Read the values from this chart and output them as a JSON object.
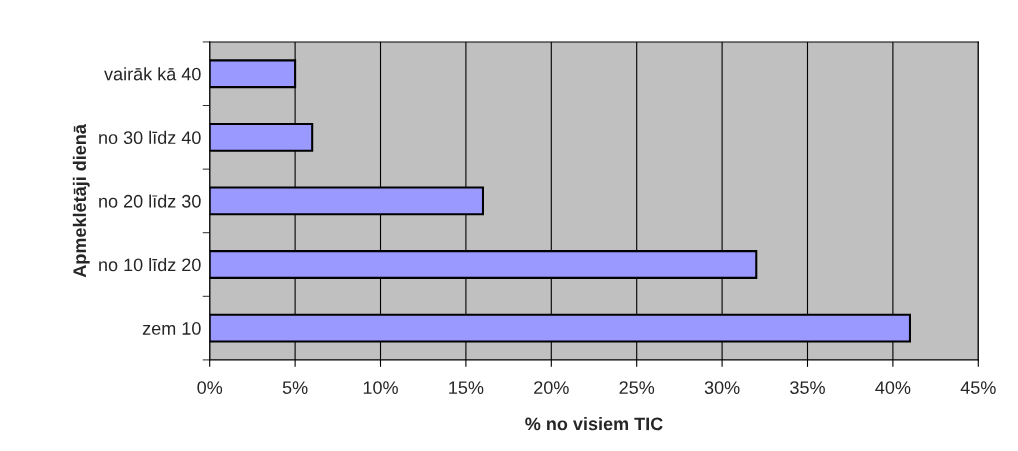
{
  "chart_data": {
    "type": "bar",
    "orientation": "horizontal",
    "xlabel": "% no visiem TIC",
    "ylabel": "Apmeklētāji dienā",
    "categories": [
      "vairāk kā 40",
      "no 30 līdz 40",
      "no 20 līdz 30",
      "no 10 līdz 20",
      "zem 10"
    ],
    "values": [
      5,
      6,
      16,
      32,
      41
    ],
    "color": "#9999ff",
    "xlim": [
      0,
      45
    ],
    "xticks": [
      {
        "value": 0,
        "label": "0%"
      },
      {
        "value": 5,
        "label": "5%"
      },
      {
        "value": 10,
        "label": "10%"
      },
      {
        "value": 15,
        "label": "15%"
      },
      {
        "value": 20,
        "label": "20%"
      },
      {
        "value": 25,
        "label": "25%"
      },
      {
        "value": 30,
        "label": "30%"
      },
      {
        "value": 35,
        "label": "35%"
      },
      {
        "value": 40,
        "label": "40%"
      },
      {
        "value": 45,
        "label": "45%"
      }
    ],
    "grid": "x"
  }
}
